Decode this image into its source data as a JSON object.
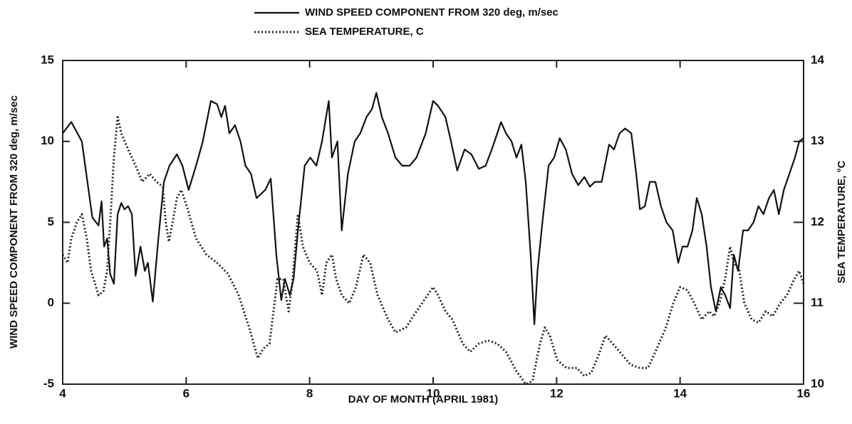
{
  "chart_data": {
    "type": "line",
    "legend": "top",
    "xlabel": "DAY OF MONTH (APRIL 1981)",
    "ylabel": "WIND SPEED COMPONENT FROM 320 deg, m/sec",
    "y2label": "SEA TEMPERATURE, °C",
    "xlim": [
      4,
      16
    ],
    "xticks": [
      4,
      6,
      8,
      10,
      12,
      14,
      16
    ],
    "ylim": [
      -5,
      15
    ],
    "yticks": [
      -5,
      0,
      5,
      10,
      15
    ],
    "y2lim": [
      10,
      14
    ],
    "y2ticks": [
      10,
      11,
      12,
      13,
      14
    ],
    "series": [
      {
        "name": "WIND SPEED COMPONENT FROM 320 deg, m/sec",
        "color": "#111111",
        "style": "solid",
        "x": [
          4.0,
          4.14,
          4.31,
          4.48,
          4.58,
          4.63,
          4.67,
          4.72,
          4.77,
          4.83,
          4.89,
          4.95,
          5.0,
          5.06,
          5.12,
          5.18,
          5.26,
          5.33,
          5.38,
          5.46,
          5.55,
          5.64,
          5.73,
          5.85,
          5.94,
          6.04,
          6.16,
          6.27,
          6.4,
          6.5,
          6.57,
          6.63,
          6.7,
          6.79,
          6.88,
          6.96,
          7.05,
          7.14,
          7.28,
          7.37,
          7.46,
          7.54,
          7.6,
          7.68,
          7.74,
          7.81,
          7.92,
          8.01,
          8.11,
          8.2,
          8.31,
          8.36,
          8.45,
          8.52,
          8.62,
          8.73,
          8.82,
          8.92,
          9.01,
          9.08,
          9.17,
          9.27,
          9.39,
          9.5,
          9.62,
          9.73,
          9.88,
          10.0,
          10.08,
          10.2,
          10.29,
          10.39,
          10.51,
          10.62,
          10.74,
          10.85,
          10.95,
          11.04,
          11.1,
          11.18,
          11.27,
          11.35,
          11.43,
          11.5,
          11.58,
          11.64,
          11.69,
          11.77,
          11.87,
          11.96,
          12.05,
          12.15,
          12.25,
          12.35,
          12.45,
          12.54,
          12.62,
          12.73,
          12.85,
          12.93,
          13.02,
          13.11,
          13.21,
          13.29,
          13.35,
          13.43,
          13.51,
          13.6,
          13.69,
          13.78,
          13.88,
          13.97,
          14.04,
          14.12,
          14.2,
          14.27,
          14.35,
          14.43,
          14.5,
          14.58,
          14.66,
          14.73,
          14.81,
          14.87,
          14.94,
          15.02,
          15.1,
          15.19,
          15.27,
          15.35,
          15.44,
          15.52,
          15.6,
          15.68,
          15.77,
          15.86,
          15.93,
          16.0
        ],
        "values": [
          10.5,
          11.2,
          10.0,
          5.3,
          4.8,
          6.3,
          3.5,
          4.0,
          1.8,
          1.2,
          5.5,
          6.2,
          5.8,
          6.0,
          5.5,
          1.7,
          3.5,
          2.0,
          2.5,
          0.1,
          4.0,
          7.5,
          8.5,
          9.2,
          8.5,
          7.0,
          8.5,
          10.0,
          12.5,
          12.3,
          11.5,
          12.2,
          10.5,
          11.0,
          10.0,
          8.5,
          8.0,
          6.5,
          7.0,
          7.7,
          3.0,
          0.2,
          1.5,
          0.5,
          1.5,
          4.5,
          8.5,
          9.0,
          8.5,
          10.0,
          12.5,
          9.0,
          10.0,
          4.5,
          8.0,
          10.0,
          10.5,
          11.5,
          12.0,
          13.0,
          11.5,
          10.5,
          9.0,
          8.5,
          8.5,
          9.0,
          10.5,
          12.5,
          12.2,
          11.5,
          10.0,
          8.2,
          9.5,
          9.2,
          8.3,
          8.5,
          9.5,
          10.5,
          11.2,
          10.5,
          10.0,
          9.0,
          9.8,
          7.5,
          3.0,
          -1.3,
          2.0,
          5.0,
          8.5,
          9.0,
          10.2,
          9.5,
          8.0,
          7.3,
          7.8,
          7.2,
          7.5,
          7.5,
          9.8,
          9.5,
          10.5,
          10.8,
          10.5,
          8.0,
          5.8,
          6.0,
          7.5,
          7.5,
          6.0,
          5.0,
          4.5,
          2.5,
          3.5,
          3.5,
          4.5,
          6.5,
          5.5,
          3.5,
          1.0,
          -0.5,
          1.0,
          0.5,
          -0.3,
          3.0,
          2.0,
          4.5,
          4.5,
          5.0,
          6.0,
          5.5,
          6.5,
          7.0,
          5.5,
          7.0,
          8.0,
          9.0,
          10.0,
          10.2
        ]
      },
      {
        "name": "SEA TEMPERATURE, C",
        "color": "#222222",
        "style": "dotted",
        "axis": "y2",
        "x": [
          4.0,
          4.08,
          4.14,
          4.23,
          4.31,
          4.39,
          4.46,
          4.58,
          4.66,
          4.72,
          4.77,
          4.83,
          4.89,
          4.95,
          5.06,
          5.18,
          5.29,
          5.41,
          5.52,
          5.62,
          5.67,
          5.72,
          5.78,
          5.85,
          5.92,
          6.01,
          6.16,
          6.33,
          6.5,
          6.68,
          6.85,
          7.02,
          7.16,
          7.25,
          7.35,
          7.43,
          7.48,
          7.57,
          7.66,
          7.72,
          7.81,
          7.89,
          8.0,
          8.12,
          8.2,
          8.27,
          8.36,
          8.43,
          8.52,
          8.64,
          8.75,
          8.87,
          8.98,
          9.1,
          9.27,
          9.39,
          9.56,
          9.73,
          9.91,
          10.0,
          10.08,
          10.2,
          10.31,
          10.48,
          10.6,
          10.74,
          10.89,
          11.04,
          11.18,
          11.35,
          11.5,
          11.61,
          11.73,
          11.81,
          11.89,
          12.01,
          12.16,
          12.33,
          12.45,
          12.56,
          12.68,
          12.79,
          12.91,
          13.02,
          13.2,
          13.35,
          13.48,
          13.6,
          13.77,
          13.89,
          14.0,
          14.12,
          14.23,
          14.35,
          14.47,
          14.55,
          14.64,
          14.73,
          14.81,
          14.87,
          14.96,
          15.04,
          15.16,
          15.27,
          15.39,
          15.5,
          15.62,
          15.73,
          15.85,
          15.93,
          16.0
        ],
        "values": [
          11.6,
          11.5,
          11.8,
          12.0,
          12.1,
          11.8,
          11.4,
          11.1,
          11.15,
          11.4,
          12.0,
          12.8,
          13.3,
          13.1,
          12.9,
          12.7,
          12.5,
          12.6,
          12.5,
          12.44,
          12.0,
          11.76,
          12.0,
          12.3,
          12.4,
          12.2,
          11.8,
          11.6,
          11.5,
          11.36,
          11.1,
          10.7,
          10.32,
          10.44,
          10.5,
          11.0,
          11.3,
          11.3,
          10.9,
          11.26,
          12.1,
          11.7,
          11.5,
          11.4,
          11.1,
          11.5,
          11.6,
          11.3,
          11.1,
          11.0,
          11.2,
          11.6,
          11.5,
          11.1,
          10.8,
          10.64,
          10.7,
          10.9,
          11.1,
          11.2,
          11.1,
          10.9,
          10.8,
          10.5,
          10.4,
          10.5,
          10.54,
          10.5,
          10.4,
          10.16,
          10.0,
          10.04,
          10.5,
          10.7,
          10.6,
          10.3,
          10.2,
          10.2,
          10.1,
          10.14,
          10.36,
          10.6,
          10.5,
          10.4,
          10.24,
          10.2,
          10.2,
          10.4,
          10.7,
          11.0,
          11.2,
          11.16,
          11.0,
          10.8,
          10.9,
          10.84,
          11.0,
          11.3,
          11.7,
          11.5,
          11.4,
          11.0,
          10.8,
          10.76,
          10.9,
          10.84,
          11.0,
          11.1,
          11.3,
          11.4,
          11.24
        ]
      }
    ]
  }
}
